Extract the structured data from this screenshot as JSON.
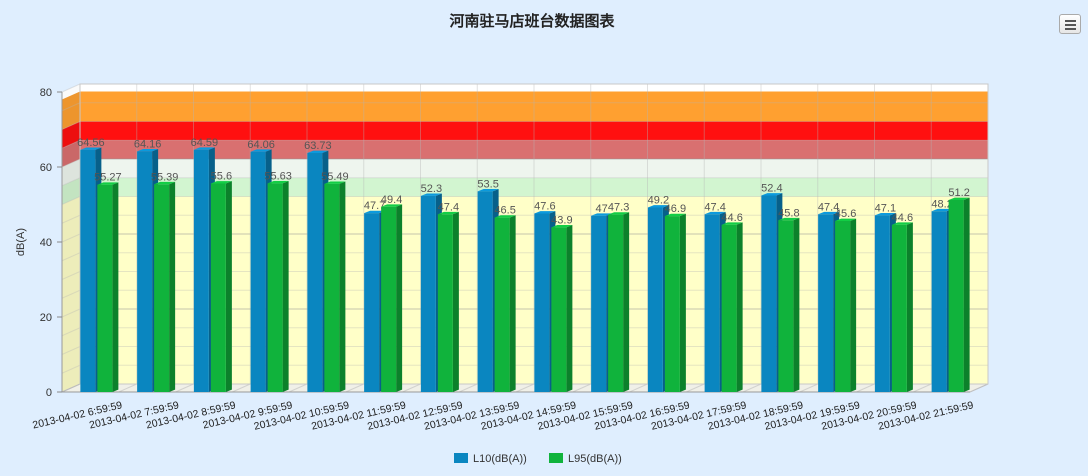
{
  "chart_data": {
    "type": "bar",
    "title": "河南驻马店班台数据图表",
    "ylabel": "dB(A)",
    "xlabel": "",
    "ylim": [
      0,
      80
    ],
    "yticks": [
      0,
      20,
      40,
      60,
      80
    ],
    "categories": [
      "2013-04-02 6:59:59",
      "2013-04-02 7:59:59",
      "2013-04-02 8:59:59",
      "2013-04-02 9:59:59",
      "2013-04-02 10:59:59",
      "2013-04-02 11:59:59",
      "2013-04-02 12:59:59",
      "2013-04-02 13:59:59",
      "2013-04-02 14:59:59",
      "2013-04-02 15:59:59",
      "2013-04-02 16:59:59",
      "2013-04-02 17:59:59",
      "2013-04-02 18:59:59",
      "2013-04-02 19:59:59",
      "2013-04-02 20:59:59",
      "2013-04-02 21:59:59"
    ],
    "series": [
      {
        "name": "L10(dB(A))",
        "color": "#0a86c0",
        "values": [
          64.56,
          64.16,
          64.59,
          64.06,
          63.73,
          47.7,
          52.3,
          53.5,
          47.6,
          47,
          49.2,
          47.4,
          52.4,
          47.4,
          47.1,
          48.2
        ],
        "labels": [
          "64.56",
          "64.16",
          "64.59",
          "64.06",
          "63.73",
          "47.7",
          "52.3",
          "53.5",
          "47.6",
          "47",
          "49.2",
          "47.4",
          "52.4",
          "47.4",
          "47.1",
          "48.2"
        ]
      },
      {
        "name": "L95(dB(A))",
        "color": "#10b33c",
        "values": [
          55.27,
          55.39,
          55.6,
          55.63,
          55.49,
          49.4,
          47.4,
          46.5,
          43.9,
          47.3,
          46.9,
          44.6,
          45.8,
          45.6,
          44.6,
          51.2
        ],
        "labels": [
          "55.27",
          "55.39",
          "55.6",
          "55.63",
          "55.49",
          "49.4",
          "47.4",
          "46.5",
          "43.9",
          "47.3",
          "46.9",
          "44.6",
          "45.8",
          "45.6",
          "44.6",
          "51.2"
        ]
      }
    ],
    "bands": [
      {
        "from": 0,
        "to": 50,
        "color": "#ffffc8"
      },
      {
        "from": 50,
        "to": 55,
        "color": "#d2f5d0"
      },
      {
        "from": 55,
        "to": 60,
        "color": "#eef5ee"
      },
      {
        "from": 60,
        "to": 65,
        "color": "#d97070"
      },
      {
        "from": 65,
        "to": 70,
        "color": "#ff1010"
      },
      {
        "from": 70,
        "to": 78,
        "color": "#ffa030"
      }
    ],
    "legend_position": "bottom-center",
    "grid": true
  }
}
